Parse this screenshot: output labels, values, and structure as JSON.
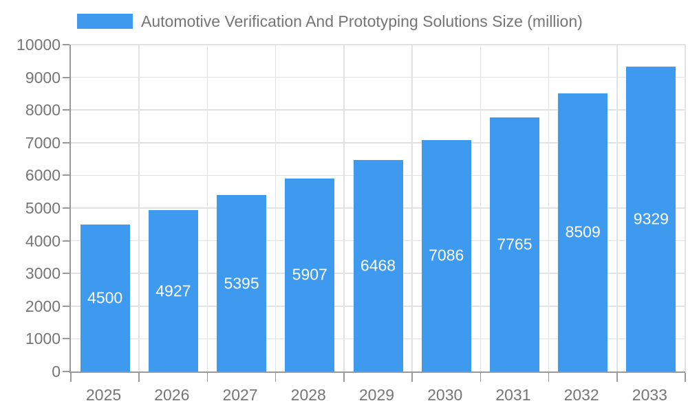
{
  "chart_data": {
    "type": "bar",
    "title": "Automotive Verification And Prototyping Solutions Size (million)",
    "categories": [
      "2025",
      "2026",
      "2027",
      "2028",
      "2029",
      "2030",
      "2031",
      "2032",
      "2033"
    ],
    "values": [
      4500,
      4927,
      5395,
      5907,
      6468,
      7086,
      7765,
      8509,
      9329
    ],
    "xlabel": "",
    "ylabel": "",
    "ylim": [
      0,
      10000
    ],
    "ytick_step": 1000,
    "grid": true,
    "legend_position": "top-left",
    "bar_color": "#3d9aee",
    "value_label_color": "#ffffff"
  },
  "legend": {
    "label": "Automotive Verification And Prototyping Solutions Size (million)"
  },
  "colors": {
    "axis": "#999999",
    "grid": "#e2e2e2",
    "tick_text": "#757575",
    "background": "#ffffff"
  }
}
